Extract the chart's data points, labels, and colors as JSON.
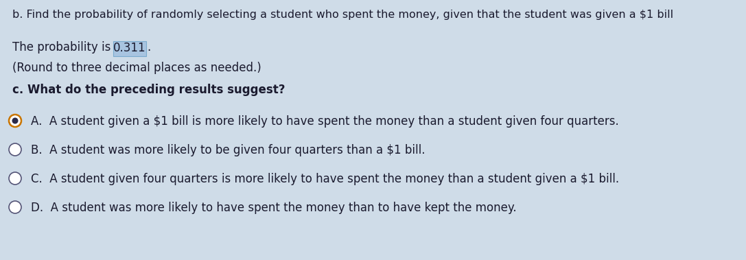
{
  "background_color": "#cfdce8",
  "line1": "b. Find the probability of randomly selecting a student who spent the money, given that the student was given a $1 bill",
  "line2_prefix": "The probability is ",
  "line2_value": "0.311",
  "line3": "(Round to three decimal places as needed.)",
  "line4": "c. What do the preceding results suggest?",
  "option_A": "A.  A student given a $1 bill is more likely to have spent the money than a student given four quarters.",
  "option_B": "B.  A student was more likely to be given four quarters than a $1 bill.",
  "option_C": "C.  A student given four quarters is more likely to have spent the money than a student given a $1 bill.",
  "option_D": "D.  A student was more likely to have spent the money than to have kept the money.",
  "selected": "A",
  "highlight_color": "#a8c4e0",
  "text_color": "#1a1a2e",
  "font_size_line1": 11.5,
  "font_size_body": 12.0,
  "font_size_options": 12.0
}
